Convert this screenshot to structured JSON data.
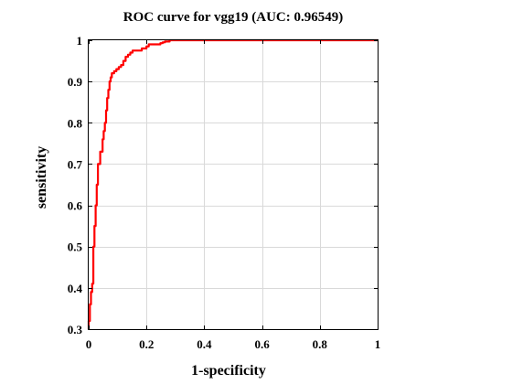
{
  "chart_data": {
    "type": "line",
    "title": "ROC curve for vgg19 (AUC: 0.96549)",
    "xlabel": "1-specificity",
    "ylabel": "sensitivity",
    "xlim": [
      0,
      1
    ],
    "ylim": [
      0.3,
      1
    ],
    "grid": true,
    "xticks": [
      "0",
      "0.2",
      "0.4",
      "0.6",
      "0.8",
      "1"
    ],
    "yticks": [
      "0.3",
      "0.4",
      "0.5",
      "0.6",
      "0.7",
      "0.8",
      "0.9",
      "1"
    ],
    "series": [
      {
        "color": "#ff0000",
        "x": [
          0,
          0,
          0.004,
          0.004,
          0.008,
          0.008,
          0.012,
          0.012,
          0.016,
          0.016,
          0.02,
          0.02,
          0.024,
          0.024,
          0.028,
          0.028,
          0.032,
          0.032,
          0.04,
          0.04,
          0.048,
          0.048,
          0.052,
          0.052,
          0.056,
          0.056,
          0.06,
          0.06,
          0.064,
          0.064,
          0.068,
          0.068,
          0.072,
          0.072,
          0.076,
          0.076,
          0.08,
          0.08,
          0.088,
          0.088,
          0.096,
          0.096,
          0.104,
          0.104,
          0.112,
          0.112,
          0.12,
          0.12,
          0.128,
          0.128,
          0.136,
          0.136,
          0.144,
          0.144,
          0.152,
          0.152,
          0.16,
          0.16,
          0.184,
          0.184,
          0.2,
          0.2,
          0.208,
          0.208,
          0.232,
          0.232,
          0.248,
          0.248,
          0.256,
          0.256,
          0.264,
          0.264,
          0.28,
          0.28,
          1
        ],
        "y": [
          0.3,
          0.32,
          0.32,
          0.36,
          0.36,
          0.39,
          0.39,
          0.41,
          0.41,
          0.5,
          0.5,
          0.55,
          0.55,
          0.6,
          0.6,
          0.65,
          0.65,
          0.7,
          0.7,
          0.73,
          0.73,
          0.76,
          0.76,
          0.78,
          0.78,
          0.8,
          0.8,
          0.83,
          0.83,
          0.86,
          0.86,
          0.88,
          0.88,
          0.9,
          0.9,
          0.91,
          0.91,
          0.92,
          0.92,
          0.925,
          0.925,
          0.93,
          0.93,
          0.935,
          0.935,
          0.94,
          0.94,
          0.95,
          0.95,
          0.96,
          0.96,
          0.965,
          0.965,
          0.97,
          0.97,
          0.975,
          0.975,
          0.975,
          0.975,
          0.98,
          0.98,
          0.985,
          0.985,
          0.99,
          0.99,
          0.99,
          0.99,
          0.993,
          0.993,
          0.995,
          0.995,
          0.997,
          0.997,
          1,
          1
        ]
      }
    ]
  }
}
